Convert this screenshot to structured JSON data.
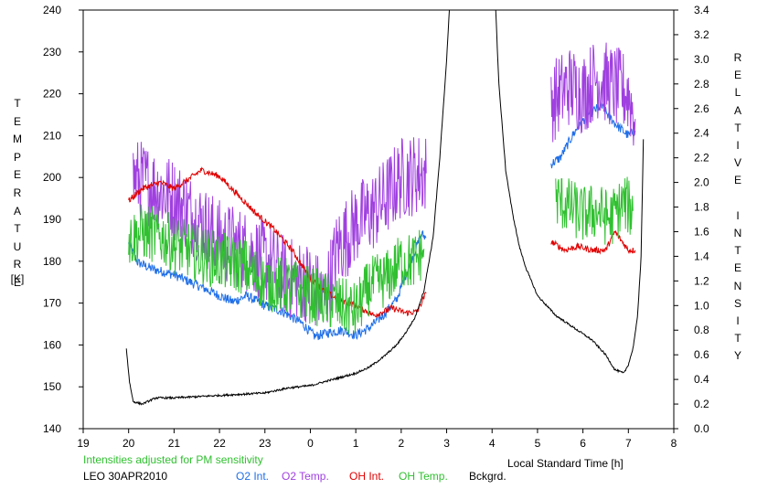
{
  "chart_data": {
    "type": "line",
    "title": "",
    "note": "Intensities adjusted for PM sensitivity",
    "station_date": "LEO 30APR2010",
    "xlabel": "Local Standard Time [h]",
    "ylabel_left": "TEMPERATURE",
    "ylabel_left_unit": "[K]",
    "ylabel_right": "RELATIVE INTENSITY",
    "xlim": [
      19,
      32
    ],
    "x_ticks": [
      19,
      20,
      21,
      22,
      23,
      24,
      25,
      26,
      27,
      28,
      29,
      30,
      31,
      32
    ],
    "x_tick_labels": [
      "19",
      "20",
      "21",
      "22",
      "23",
      "0",
      "1",
      "2",
      "3",
      "4",
      "5",
      "6",
      "7",
      "8"
    ],
    "ylim_left": [
      140,
      240
    ],
    "y_ticks_left": [
      "140",
      "150",
      "160",
      "170",
      "180",
      "190",
      "200",
      "210",
      "220",
      "230",
      "240"
    ],
    "ylim_right": [
      0.0,
      3.4
    ],
    "y_ticks_right": [
      "0.0",
      "0.2",
      "0.4",
      "0.6",
      "0.8",
      "1.0",
      "1.2",
      "1.4",
      "1.6",
      "1.8",
      "2.0",
      "2.2",
      "2.4",
      "2.6",
      "2.8",
      "3.0",
      "3.2",
      "3.4"
    ],
    "grid": false,
    "legend_position": "bottom",
    "series": [
      {
        "name": "O2 Int.",
        "axis": "right",
        "color": "#1f6fe8",
        "noise": 0.04,
        "segments": [
          [
            [
              20.0,
              1.5
            ],
            [
              20.2,
              1.35
            ],
            [
              20.5,
              1.3
            ],
            [
              21.0,
              1.25
            ],
            [
              21.3,
              1.2
            ],
            [
              21.6,
              1.15
            ],
            [
              22.0,
              1.08
            ],
            [
              22.3,
              1.03
            ],
            [
              22.6,
              1.08
            ],
            [
              23.0,
              1.0
            ],
            [
              23.4,
              0.95
            ],
            [
              23.8,
              0.86
            ],
            [
              24.1,
              0.75
            ],
            [
              24.4,
              0.78
            ],
            [
              24.7,
              0.8
            ],
            [
              25.0,
              0.76
            ],
            [
              25.3,
              0.82
            ],
            [
              25.6,
              0.92
            ],
            [
              25.9,
              1.05
            ],
            [
              26.2,
              1.35
            ],
            [
              26.45,
              1.58
            ],
            [
              26.55,
              1.55
            ]
          ],
          [
            [
              29.3,
              2.15
            ],
            [
              29.5,
              2.2
            ],
            [
              29.8,
              2.4
            ],
            [
              30.1,
              2.55
            ],
            [
              30.4,
              2.62
            ],
            [
              30.7,
              2.48
            ],
            [
              31.0,
              2.38
            ],
            [
              31.15,
              2.42
            ]
          ]
        ]
      },
      {
        "name": "O2 Temp.",
        "axis": "left",
        "color": "#a040e0",
        "noise": 10,
        "segments": [
          [
            [
              20.1,
              200
            ],
            [
              20.5,
              198
            ],
            [
              21.0,
              195
            ],
            [
              21.5,
              190
            ],
            [
              22.0,
              185
            ],
            [
              22.5,
              183
            ],
            [
              23.0,
              180
            ],
            [
              23.5,
              176
            ],
            [
              24.0,
              175
            ],
            [
              24.3,
              170
            ],
            [
              24.6,
              183
            ],
            [
              25.0,
              189
            ],
            [
              25.5,
              193
            ],
            [
              26.0,
              200
            ],
            [
              26.4,
              201
            ],
            [
              26.55,
              201
            ]
          ],
          [
            [
              29.3,
              218
            ],
            [
              29.7,
              222
            ],
            [
              30.0,
              220
            ],
            [
              30.3,
              224
            ],
            [
              30.6,
              222
            ],
            [
              31.0,
              220
            ],
            [
              31.15,
              214
            ]
          ]
        ]
      },
      {
        "name": "OH Int.",
        "axis": "right",
        "color": "#e00000",
        "noise": 0.025,
        "segments": [
          [
            [
              20.0,
              1.85
            ],
            [
              20.3,
              1.95
            ],
            [
              20.7,
              2.0
            ],
            [
              21.0,
              1.95
            ],
            [
              21.3,
              2.02
            ],
            [
              21.6,
              2.1
            ],
            [
              22.0,
              2.05
            ],
            [
              22.4,
              1.9
            ],
            [
              22.8,
              1.75
            ],
            [
              23.2,
              1.62
            ],
            [
              23.6,
              1.45
            ],
            [
              24.0,
              1.22
            ],
            [
              24.3,
              1.12
            ],
            [
              24.6,
              1.05
            ],
            [
              25.0,
              1.0
            ],
            [
              25.4,
              0.92
            ],
            [
              25.8,
              0.98
            ],
            [
              26.1,
              0.94
            ],
            [
              26.35,
              0.95
            ],
            [
              26.55,
              1.1
            ]
          ],
          [
            [
              29.3,
              1.52
            ],
            [
              29.6,
              1.45
            ],
            [
              29.9,
              1.48
            ],
            [
              30.2,
              1.45
            ],
            [
              30.5,
              1.45
            ],
            [
              30.7,
              1.6
            ],
            [
              31.0,
              1.45
            ],
            [
              31.15,
              1.45
            ]
          ]
        ]
      },
      {
        "name": "OH Temp.",
        "axis": "left",
        "color": "#30c030",
        "noise": 7,
        "segments": [
          [
            [
              20.0,
              185
            ],
            [
              20.3,
              187
            ],
            [
              20.7,
              186
            ],
            [
              21.0,
              184
            ],
            [
              21.5,
              182
            ],
            [
              22.0,
              180
            ],
            [
              22.5,
              179
            ],
            [
              23.0,
              175
            ],
            [
              23.5,
              174
            ],
            [
              24.0,
              172
            ],
            [
              24.5,
              170
            ],
            [
              25.0,
              168
            ],
            [
              25.3,
              174
            ],
            [
              25.7,
              176
            ],
            [
              26.0,
              180
            ],
            [
              26.3,
              180
            ],
            [
              26.5,
              183
            ]
          ],
          [
            [
              29.4,
              195
            ],
            [
              29.7,
              193
            ],
            [
              30.0,
              191
            ],
            [
              30.3,
              192
            ],
            [
              30.6,
              190
            ],
            [
              30.9,
              194
            ],
            [
              31.1,
              192
            ]
          ]
        ]
      },
      {
        "name": "Bckgrd.",
        "axis": "right",
        "color": "#000000",
        "noise": 0.008,
        "segments": [
          [
            [
              19.95,
              0.65
            ],
            [
              20.02,
              0.38
            ],
            [
              20.1,
              0.22
            ],
            [
              20.3,
              0.2
            ],
            [
              20.6,
              0.25
            ],
            [
              21.0,
              0.25
            ],
            [
              21.5,
              0.26
            ],
            [
              22.0,
              0.27
            ],
            [
              22.5,
              0.28
            ],
            [
              23.0,
              0.29
            ],
            [
              23.5,
              0.33
            ],
            [
              24.0,
              0.35
            ],
            [
              24.5,
              0.4
            ],
            [
              25.0,
              0.45
            ],
            [
              25.3,
              0.5
            ],
            [
              25.6,
              0.58
            ],
            [
              25.9,
              0.68
            ],
            [
              26.1,
              0.78
            ],
            [
              26.3,
              0.9
            ],
            [
              26.5,
              1.12
            ],
            [
              26.7,
              1.55
            ],
            [
              26.85,
              2.2
            ],
            [
              27.0,
              3.0
            ],
            [
              27.06,
              3.4
            ]
          ],
          [
            [
              28.08,
              3.4
            ],
            [
              28.15,
              2.8
            ],
            [
              28.3,
              2.1
            ],
            [
              28.45,
              1.75
            ],
            [
              28.6,
              1.48
            ],
            [
              28.75,
              1.3
            ],
            [
              29.0,
              1.08
            ],
            [
              29.4,
              0.92
            ],
            [
              29.8,
              0.82
            ],
            [
              30.2,
              0.72
            ],
            [
              30.5,
              0.6
            ],
            [
              30.7,
              0.48
            ],
            [
              30.9,
              0.45
            ],
            [
              31.0,
              0.52
            ],
            [
              31.1,
              0.65
            ],
            [
              31.2,
              0.9
            ],
            [
              31.28,
              1.4
            ],
            [
              31.33,
              2.35
            ]
          ]
        ]
      }
    ]
  }
}
